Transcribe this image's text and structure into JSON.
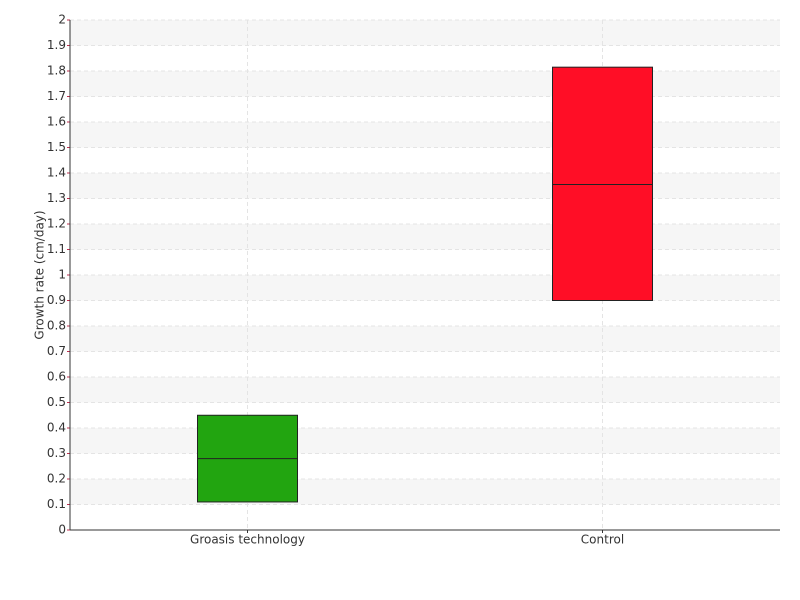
{
  "chart_data": {
    "type": "box",
    "y_label": "Growth rate (cm/day)",
    "categories": [
      "Groasis technology",
      "Control"
    ],
    "boxes": [
      {
        "q1": 0.11,
        "median": 0.28,
        "q3": 0.45,
        "color": "#22a510"
      },
      {
        "q1": 0.9,
        "median": 1.355,
        "q3": 1.815,
        "color": "#ff0e26"
      }
    ],
    "ylim": [
      0,
      2
    ],
    "yticks": [
      0,
      0.1,
      0.2,
      0.3,
      0.4,
      0.5,
      0.6,
      0.7,
      0.8,
      0.9,
      1,
      1.1,
      1.2,
      1.3,
      1.4,
      1.5,
      1.6,
      1.7,
      1.8,
      1.9,
      2
    ],
    "grid": true
  }
}
